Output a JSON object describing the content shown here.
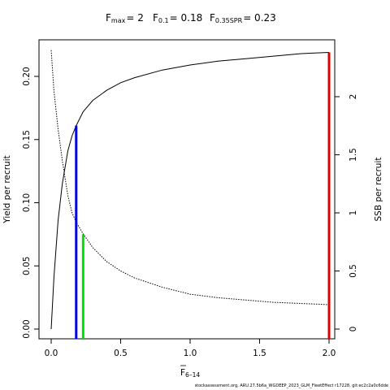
{
  "chart_data": {
    "type": "line",
    "title_parts": {
      "fmax": {
        "symbol": "F",
        "sub": "max",
        "value": "= 2"
      },
      "f01": {
        "symbol": "F",
        "sub": "0.1",
        "value": "= 0.18"
      },
      "fspr": {
        "symbol": "F",
        "sub": "0.35SPR",
        "value": "= 0.23"
      }
    },
    "xlabel": {
      "symbol": "F",
      "sub": "6–14"
    },
    "ylabel_left": "Yield per recruit",
    "ylabel_right": "SSB per recruit",
    "xlim": [
      0,
      2
    ],
    "ylim_left": [
      0,
      0.22
    ],
    "ylim_right": [
      0,
      2.4
    ],
    "x_ticks": [
      "0.0",
      "0.5",
      "1.0",
      "1.5",
      "2.0"
    ],
    "x_tick_values": [
      0,
      0.5,
      1.0,
      1.5,
      2.0
    ],
    "y_left_ticks": [
      "0.00",
      "0.05",
      "0.10",
      "0.15",
      "0.20"
    ],
    "y_left_tick_values": [
      0,
      0.05,
      0.1,
      0.15,
      0.2
    ],
    "y_right_ticks": [
      "0",
      "0.5",
      "1",
      "1.5",
      "2"
    ],
    "y_right_tick_values": [
      0,
      0.5,
      1,
      1.5,
      2
    ],
    "series": [
      {
        "axis": "left",
        "style": "solid",
        "color": "#000000",
        "x": [
          0,
          0.02,
          0.05,
          0.08,
          0.12,
          0.15,
          0.18,
          0.23,
          0.3,
          0.4,
          0.5,
          0.6,
          0.8,
          1.0,
          1.2,
          1.4,
          1.6,
          1.8,
          2.0
        ],
        "y": [
          0,
          0.041,
          0.086,
          0.115,
          0.141,
          0.153,
          0.161,
          0.172,
          0.181,
          0.189,
          0.195,
          0.199,
          0.205,
          0.209,
          0.212,
          0.214,
          0.216,
          0.218,
          0.219
        ]
      },
      {
        "axis": "right",
        "style": "dotted",
        "color": "#000000",
        "x": [
          0,
          0.02,
          0.05,
          0.08,
          0.12,
          0.15,
          0.18,
          0.23,
          0.3,
          0.4,
          0.5,
          0.6,
          0.8,
          1.0,
          1.2,
          1.4,
          1.6,
          1.8,
          2.0
        ],
        "y": [
          2.4,
          2.05,
          1.72,
          1.45,
          1.15,
          1.0,
          0.92,
          0.82,
          0.7,
          0.58,
          0.5,
          0.44,
          0.36,
          0.3,
          0.27,
          0.25,
          0.23,
          0.22,
          0.21
        ]
      }
    ],
    "reference_lines": [
      {
        "name": "Fmax",
        "x": 2.0,
        "y_top": 0.219,
        "color": "#e00000"
      },
      {
        "name": "F0.1",
        "x": 0.18,
        "y_top": 0.161,
        "color": "#0000e0"
      },
      {
        "name": "F0.35SPR",
        "x": 0.23,
        "y_top": 0.075,
        "color": "#00e000"
      }
    ]
  },
  "footer": "stockassessment.org, ARU.27.5b6a_WGDEEP_2023_GLM_FleetEffect r17228, git:ec2c2a0c6dde"
}
